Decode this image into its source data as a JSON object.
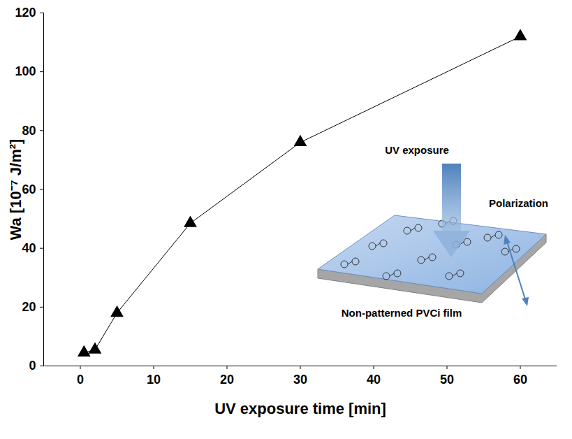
{
  "chart_data": {
    "type": "line",
    "x": [
      0.5,
      2,
      5,
      15,
      30,
      60
    ],
    "values": [
      4.5,
      5.5,
      18,
      48.5,
      76,
      112
    ],
    "color": "#000000",
    "marker": "triangle",
    "x_label": "UV exposure time [min]",
    "y_label": "Wa [10⁻⁷ J/m²]",
    "xlim": [
      -5,
      65
    ],
    "xticks": [
      0,
      10,
      20,
      30,
      40,
      50,
      60
    ],
    "ylim": [
      0,
      120
    ],
    "yticks": [
      0,
      20,
      40,
      60,
      80,
      100,
      120
    ],
    "grid": false,
    "annotations": [
      "UV exposure",
      "Polarization",
      "Non-patterned PVCi film"
    ]
  }
}
